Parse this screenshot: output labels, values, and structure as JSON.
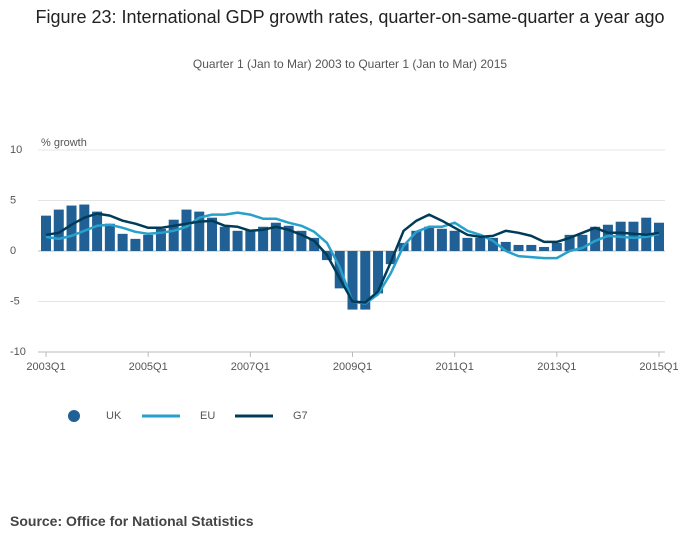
{
  "chart_data": {
    "type": "bar_line",
    "title": "Figure 23: International GDP growth rates, quarter-on-same-quarter a year ago",
    "subtitle": "Quarter 1 (Jan to Mar) 2003 to Quarter 1 (Jan to Mar) 2015",
    "y_label": "% growth",
    "source": "Source: Office for National Statistics",
    "categories": [
      "2003Q1",
      null,
      null,
      null,
      null,
      null,
      null,
      null,
      "2005Q1",
      null,
      null,
      null,
      null,
      null,
      null,
      null,
      "2007Q1",
      null,
      null,
      null,
      null,
      null,
      null,
      null,
      "2009Q1",
      null,
      null,
      null,
      null,
      null,
      null,
      null,
      "2011Q1",
      null,
      null,
      null,
      null,
      null,
      null,
      null,
      "2013Q1",
      null,
      null,
      null,
      null,
      null,
      null,
      null,
      "2015Q1"
    ],
    "series": [
      {
        "name": "UK",
        "type": "bar",
        "color": "#206095",
        "values": [
          3.5,
          4.1,
          4.5,
          4.6,
          3.9,
          2.7,
          1.7,
          1.2,
          1.6,
          2.2,
          3.1,
          4.1,
          3.9,
          3.3,
          2.4,
          2.0,
          2.1,
          2.4,
          2.8,
          2.5,
          2.0,
          1.3,
          -0.9,
          -3.7,
          -5.8,
          -5.8,
          -4.2,
          -1.3,
          0.8,
          2.0,
          2.4,
          2.2,
          2.0,
          1.3,
          1.3,
          1.3,
          0.9,
          0.6,
          0.6,
          0.4,
          0.8,
          1.6,
          1.6,
          2.4,
          2.6,
          2.9,
          2.9,
          3.3,
          2.8
        ]
      },
      {
        "name": "EU",
        "type": "line",
        "color": "#27a0cc",
        "values": [
          1.4,
          1.2,
          1.5,
          2.0,
          2.5,
          2.6,
          2.3,
          1.9,
          1.7,
          1.8,
          2.0,
          2.4,
          3.3,
          3.6,
          3.6,
          3.8,
          3.6,
          3.2,
          3.2,
          2.8,
          2.5,
          1.9,
          0.8,
          -1.6,
          -5.0,
          -5.2,
          -4.3,
          -2.2,
          0.5,
          1.9,
          2.4,
          2.4,
          2.8,
          2.0,
          1.6,
          1.0,
          0.0,
          -0.5,
          -0.6,
          -0.7,
          -0.7,
          0.0,
          0.3,
          1.0,
          1.5,
          1.4,
          1.3,
          1.4,
          1.7
        ]
      },
      {
        "name": "G7",
        "type": "line",
        "color": "#003c57",
        "values": [
          1.6,
          1.8,
          2.6,
          3.3,
          3.7,
          3.5,
          3.0,
          2.7,
          2.3,
          2.3,
          2.5,
          2.7,
          2.9,
          3.0,
          2.5,
          2.4,
          2.0,
          2.1,
          2.4,
          2.1,
          1.6,
          1.0,
          -0.4,
          -2.7,
          -5.0,
          -5.1,
          -4.0,
          -1.1,
          2.0,
          3.0,
          3.6,
          3.0,
          2.3,
          1.6,
          1.4,
          1.5,
          2.0,
          1.8,
          1.5,
          0.9,
          0.9,
          1.3,
          1.8,
          2.3,
          1.8,
          1.8,
          1.7,
          1.6,
          1.8
        ]
      }
    ],
    "ylim": [
      -10,
      10
    ],
    "yticks": [
      -10,
      -5,
      0,
      5,
      10
    ],
    "grid": true
  }
}
